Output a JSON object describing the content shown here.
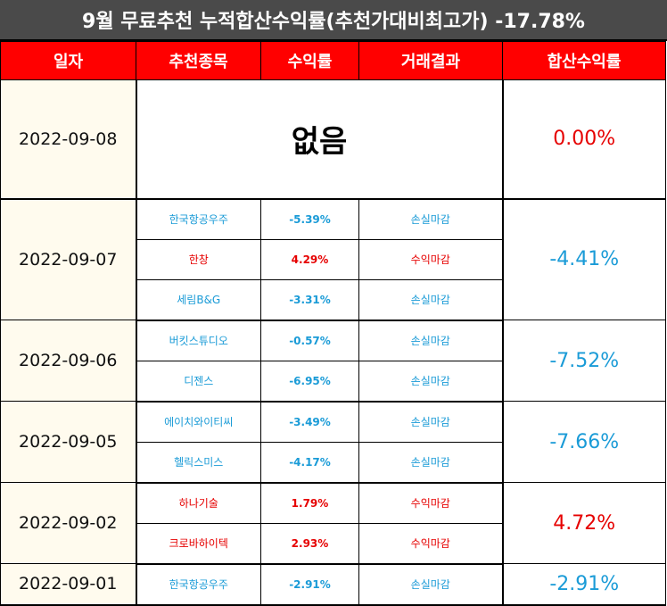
{
  "title": "9월 무료추천 누적합산수익률(추천가대비최고가) -17.78%",
  "headers": {
    "date": "일자",
    "stock": "추천종목",
    "ret": "수익률",
    "result": "거래결과",
    "cum": "합산수익률"
  },
  "colors": {
    "header_bg": "#ff0000",
    "title_bg": "#4a4a4a",
    "loss": "#1a9bd7",
    "gain": "#e60000",
    "date_bg": "#fffbee"
  },
  "groups": [
    {
      "date": "2022-09-08",
      "none_label": "없음",
      "cum": "0.00%",
      "cum_tone": "gain",
      "rows": []
    },
    {
      "date": "2022-09-07",
      "cum": "-4.41%",
      "cum_tone": "loss",
      "rows": [
        {
          "stock": "한국항공우주",
          "ret": "-5.39%",
          "result": "손실마감",
          "tone": "loss"
        },
        {
          "stock": "한창",
          "ret": "4.29%",
          "result": "수익마감",
          "tone": "gain"
        },
        {
          "stock": "세림B&G",
          "ret": "-3.31%",
          "result": "손실마감",
          "tone": "loss"
        }
      ]
    },
    {
      "date": "2022-09-06",
      "cum": "-7.52%",
      "cum_tone": "loss",
      "rows": [
        {
          "stock": "버킷스튜디오",
          "ret": "-0.57%",
          "result": "손실마감",
          "tone": "loss"
        },
        {
          "stock": "디젠스",
          "ret": "-6.95%",
          "result": "손실마감",
          "tone": "loss"
        }
      ]
    },
    {
      "date": "2022-09-05",
      "cum": "-7.66%",
      "cum_tone": "loss",
      "rows": [
        {
          "stock": "에이치와이티씨",
          "ret": "-3.49%",
          "result": "손실마감",
          "tone": "loss"
        },
        {
          "stock": "헬릭스미스",
          "ret": "-4.17%",
          "result": "손실마감",
          "tone": "loss"
        }
      ]
    },
    {
      "date": "2022-09-02",
      "cum": "4.72%",
      "cum_tone": "gain",
      "rows": [
        {
          "stock": "하나기술",
          "ret": "1.79%",
          "result": "수익마감",
          "tone": "gain"
        },
        {
          "stock": "크로바하이텍",
          "ret": "2.93%",
          "result": "수익마감",
          "tone": "gain"
        }
      ]
    },
    {
      "date": "2022-09-01",
      "cum": "-2.91%",
      "cum_tone": "loss",
      "rows": [
        {
          "stock": "한국항공우주",
          "ret": "-2.91%",
          "result": "손실마감",
          "tone": "loss"
        }
      ]
    }
  ]
}
